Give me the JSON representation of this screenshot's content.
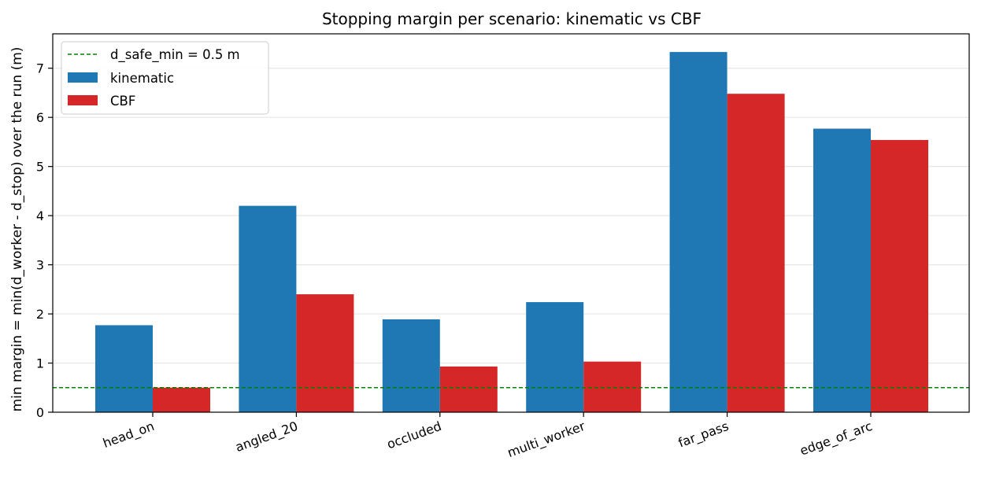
{
  "chart_data": {
    "type": "bar",
    "title": "Stopping margin per scenario: kinematic vs CBF",
    "xlabel": "",
    "ylabel": "min margin = min(d_worker - d_stop) over the run (m)",
    "categories": [
      "head_on",
      "angled_20",
      "occluded",
      "multi_worker",
      "far_pass",
      "edge_of_arc"
    ],
    "series": [
      {
        "name": "kinematic",
        "color": "#1f77b4",
        "values": [
          1.77,
          4.2,
          1.89,
          2.24,
          7.33,
          5.77
        ]
      },
      {
        "name": "CBF",
        "color": "#d62728",
        "values": [
          0.5,
          2.4,
          0.93,
          1.03,
          6.48,
          5.54
        ]
      }
    ],
    "reference_line": {
      "label": "d_safe_min = 0.5 m",
      "value": 0.5,
      "color": "#008000",
      "style": "dashed"
    },
    "ylim": [
      0,
      7.7
    ],
    "yticks": [
      0,
      1,
      2,
      3,
      4,
      5,
      6,
      7
    ],
    "grid": "horizontal",
    "legend": "top-left"
  }
}
